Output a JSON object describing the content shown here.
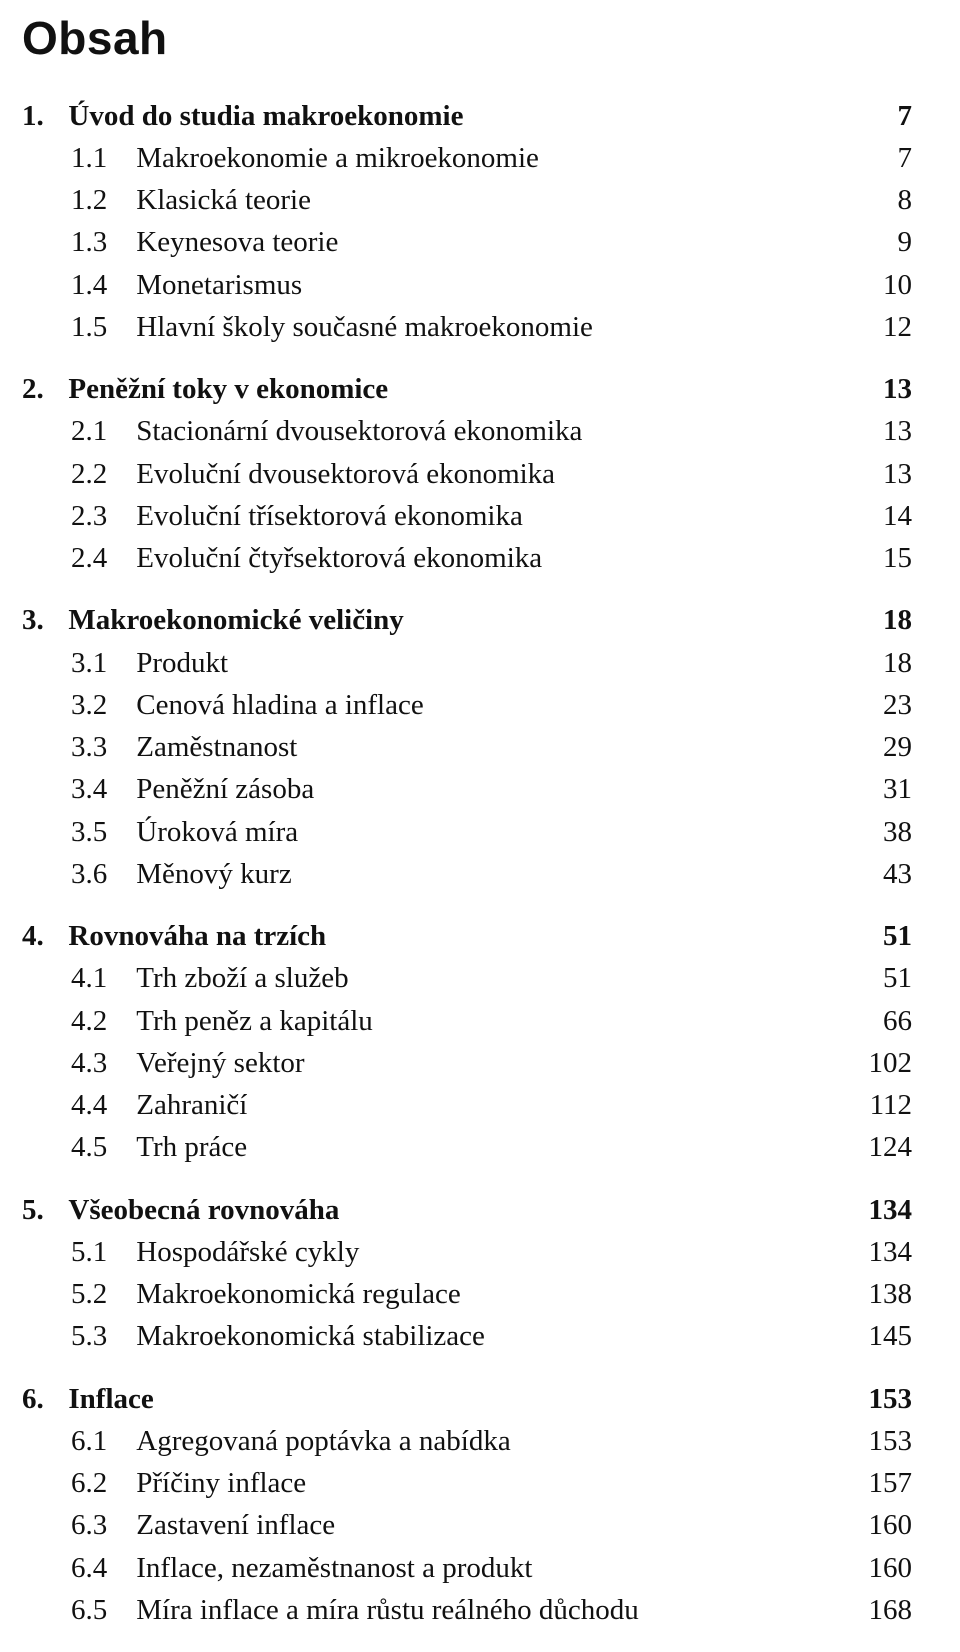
{
  "title": "Obsah",
  "toc": [
    {
      "type": "chapter",
      "num": "1.",
      "label": "Úvod do studia makroekonomie",
      "page": "7"
    },
    {
      "type": "sub",
      "num": "1.1",
      "label": "Makroekonomie a mikroekonomie",
      "page": "7"
    },
    {
      "type": "sub",
      "num": "1.2",
      "label": "Klasická teorie",
      "page": "8"
    },
    {
      "type": "sub",
      "num": "1.3",
      "label": "Keynesova teorie",
      "page": "9"
    },
    {
      "type": "sub",
      "num": "1.4",
      "label": "Monetarismus",
      "page": "10"
    },
    {
      "type": "sub",
      "num": "1.5",
      "label": "Hlavní školy současné makroekonomie",
      "page": "12"
    },
    {
      "type": "gap"
    },
    {
      "type": "chapter",
      "num": "2.",
      "label": "Peněžní toky v ekonomice",
      "page": "13"
    },
    {
      "type": "sub",
      "num": "2.1",
      "label": "Stacionární dvousektorová ekonomika",
      "page": "13"
    },
    {
      "type": "sub",
      "num": "2.2",
      "label": "Evoluční dvousektorová ekonomika",
      "page": "13"
    },
    {
      "type": "sub",
      "num": "2.3",
      "label": "Evoluční třísektorová ekonomika",
      "page": "14"
    },
    {
      "type": "sub",
      "num": "2.4",
      "label": "Evoluční čtyřsektorová ekonomika",
      "page": "15"
    },
    {
      "type": "gap"
    },
    {
      "type": "chapter",
      "num": "3.",
      "label": "Makroekonomické veličiny",
      "page": "18"
    },
    {
      "type": "sub",
      "num": "3.1",
      "label": "Produkt",
      "page": "18"
    },
    {
      "type": "sub",
      "num": "3.2",
      "label": "Cenová hladina a inflace",
      "page": "23"
    },
    {
      "type": "sub",
      "num": "3.3",
      "label": "Zaměstnanost",
      "page": "29"
    },
    {
      "type": "sub",
      "num": "3.4",
      "label": "Peněžní zásoba",
      "page": "31"
    },
    {
      "type": "sub",
      "num": "3.5",
      "label": "Úroková míra",
      "page": "38"
    },
    {
      "type": "sub",
      "num": "3.6",
      "label": "Měnový kurz",
      "page": "43"
    },
    {
      "type": "gap"
    },
    {
      "type": "chapter",
      "num": "4.",
      "label": "Rovnováha na trzích",
      "page": "51"
    },
    {
      "type": "sub",
      "num": "4.1",
      "label": "Trh zboží a služeb",
      "page": "51"
    },
    {
      "type": "sub",
      "num": "4.2",
      "label": "Trh peněz a kapitálu",
      "page": "66"
    },
    {
      "type": "sub",
      "num": "4.3",
      "label": "Veřejný sektor",
      "page": "102"
    },
    {
      "type": "sub",
      "num": "4.4",
      "label": "Zahraničí",
      "page": "112"
    },
    {
      "type": "sub",
      "num": "4.5",
      "label": "Trh práce",
      "page": "124"
    },
    {
      "type": "gap"
    },
    {
      "type": "chapter",
      "num": "5.",
      "label": "Všeobecná rovnováha",
      "page": "134"
    },
    {
      "type": "sub",
      "num": "5.1",
      "label": "Hospodářské cykly",
      "page": "134"
    },
    {
      "type": "sub",
      "num": "5.2",
      "label": "Makroekonomická regulace",
      "page": "138"
    },
    {
      "type": "sub",
      "num": "5.3",
      "label": "Makroekonomická stabilizace",
      "page": "145"
    },
    {
      "type": "gap"
    },
    {
      "type": "chapter",
      "num": "6.",
      "label": "Inflace",
      "page": "153"
    },
    {
      "type": "sub",
      "num": "6.1",
      "label": "Agregovaná poptávka a nabídka",
      "page": "153"
    },
    {
      "type": "sub",
      "num": "6.2",
      "label": "Příčiny inflace",
      "page": "157"
    },
    {
      "type": "sub",
      "num": "6.3",
      "label": "Zastavení inflace",
      "page": "160"
    },
    {
      "type": "sub",
      "num": "6.4",
      "label": "Inflace, nezaměstnanost a produkt",
      "page": "160"
    },
    {
      "type": "sub",
      "num": "6.5",
      "label": "Míra inflace a míra růstu reálného důchodu",
      "page": "168"
    }
  ]
}
